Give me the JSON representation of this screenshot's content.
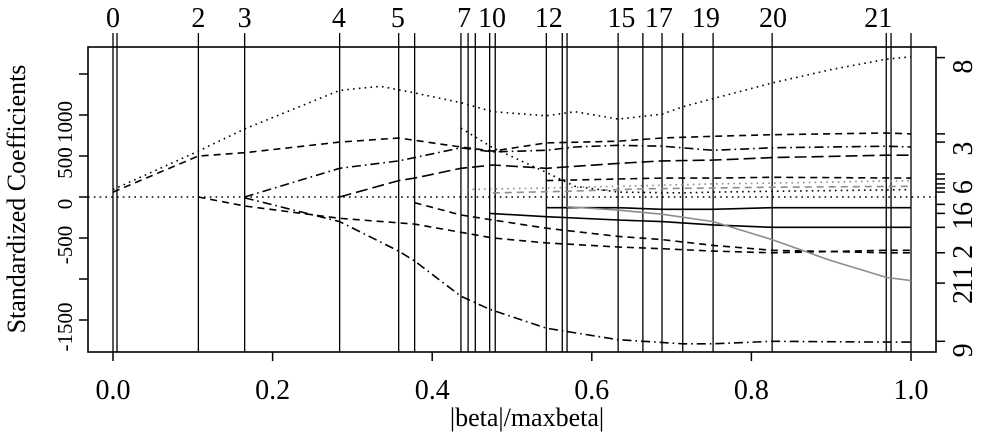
{
  "chart_data": {
    "type": "line",
    "title": "",
    "xlabel": "|beta|/maxbeta|",
    "ylabel": "Standardized Coefficients",
    "x_range": [
      0,
      1
    ],
    "y_range": [
      -1890,
      1830
    ],
    "grid": false,
    "legend_position": "none",
    "x_ticks": [
      {
        "value": 0.0,
        "label": "0.0"
      },
      {
        "value": 0.2,
        "label": "0.2"
      },
      {
        "value": 0.4,
        "label": "0.4"
      },
      {
        "value": 0.6,
        "label": "0.6"
      },
      {
        "value": 0.8,
        "label": "0.8"
      },
      {
        "value": 1.0,
        "label": "1.0"
      }
    ],
    "y_ticks": [
      {
        "value": 1500,
        "label": ""
      },
      {
        "value": 1000,
        "label": "1000"
      },
      {
        "value": 500,
        "label": "500"
      },
      {
        "value": 0,
        "label": "0"
      },
      {
        "value": -500,
        "label": "-500"
      },
      {
        "value": -1000,
        "label": ""
      },
      {
        "value": -1500,
        "label": "-1500"
      }
    ],
    "top_axis_steps": [
      {
        "label": "0",
        "x": 0.0
      },
      {
        "label": "2",
        "x": 0.107
      },
      {
        "label": "3",
        "x": 0.165
      },
      {
        "label": "4",
        "x": 0.283
      },
      {
        "label": "5",
        "x": 0.357
      },
      {
        "label": "7",
        "x": 0.44
      },
      {
        "label": "10",
        "x": 0.475
      },
      {
        "label": "12",
        "x": 0.546
      },
      {
        "label": "15",
        "x": 0.637
      },
      {
        "label": "17",
        "x": 0.684
      },
      {
        "label": "19",
        "x": 0.743
      },
      {
        "label": "20",
        "x": 0.827
      },
      {
        "label": "21",
        "x": 0.959
      }
    ],
    "step_lines_x": [
      0,
      0.005,
      0.107,
      0.165,
      0.284,
      0.358,
      0.378,
      0.436,
      0.445,
      0.454,
      0.472,
      0.479,
      0.543,
      0.563,
      0.569,
      0.633,
      0.664,
      0.688,
      0.714,
      0.752,
      0.826,
      0.969,
      0.975,
      1.0
    ],
    "right_axis_ticks": [
      1700,
      770,
      670,
      280,
      220,
      160,
      110,
      60,
      -90,
      -200,
      -370,
      -680,
      -1050,
      -1760
    ],
    "right_axis_labels": [
      {
        "label": "8",
        "value": 1700
      },
      {
        "label": "3",
        "value": 700
      },
      {
        "label": "6",
        "value": 230
      },
      {
        "label": "16",
        "value": -120
      },
      {
        "label": "2",
        "value": -560
      },
      {
        "label": "11",
        "value": -890
      },
      {
        "label": "2",
        "value": -1110
      },
      {
        "label": "9",
        "value": -1760
      }
    ],
    "zero_reference_line": {
      "y": 0,
      "style": "dotted"
    },
    "series": [
      {
        "name": "path-8-top",
        "lty": "dotted",
        "color": "#000000",
        "x": [
          0,
          0.107,
          0.165,
          0.284,
          0.335,
          0.378,
          0.436,
          0.476,
          0.543,
          0.579,
          0.633,
          0.688,
          0.714,
          0.752,
          0.826,
          0.898,
          0.969,
          1.0
        ],
        "y": [
          90,
          560,
          830,
          1300,
          1350,
          1270,
          1150,
          1040,
          990,
          1040,
          950,
          1010,
          1100,
          1200,
          1390,
          1550,
          1680,
          1710
        ]
      },
      {
        "name": "path-3-upper",
        "lty": "dashed",
        "color": "#000000",
        "x": [
          0,
          0.107,
          0.165,
          0.284,
          0.358,
          0.436,
          0.476,
          0.543,
          0.633,
          0.688,
          0.752,
          0.826,
          0.969,
          1.0
        ],
        "y": [
          60,
          500,
          540,
          670,
          720,
          610,
          560,
          660,
          680,
          720,
          740,
          760,
          780,
          770
        ]
      },
      {
        "name": "path-3-lower",
        "lty": "dashdot",
        "color": "#000000",
        "x": [
          0.165,
          0.284,
          0.358,
          0.397,
          0.436,
          0.476,
          0.543,
          0.579,
          0.633,
          0.688,
          0.752,
          0.826,
          0.969,
          1.0
        ],
        "y": [
          0,
          350,
          440,
          520,
          600,
          550,
          570,
          610,
          630,
          620,
          570,
          600,
          620,
          610
        ]
      },
      {
        "name": "path-mid-rise",
        "lty": "longdash",
        "color": "#000000",
        "x": [
          0.284,
          0.358,
          0.378,
          0.436,
          0.476,
          0.543,
          0.633,
          0.688,
          0.752,
          0.826,
          0.969,
          1.0
        ],
        "y": [
          0,
          200,
          230,
          350,
          390,
          350,
          410,
          440,
          450,
          480,
          510,
          510
        ]
      },
      {
        "name": "path-6-gray-dotted",
        "lty": "dotted",
        "color": "#8c8c8c",
        "x": [
          0.436,
          0.543,
          0.633,
          0.752,
          0.826,
          1.0
        ],
        "y": [
          90,
          110,
          130,
          160,
          170,
          200
        ]
      },
      {
        "name": "path-6-gray-dashed",
        "lty": "dashed",
        "color": "#8c8c8c",
        "x": [
          0.476,
          0.569,
          0.664,
          0.752,
          0.826,
          1.0
        ],
        "y": [
          50,
          70,
          100,
          110,
          120,
          130
        ]
      },
      {
        "name": "path-6-black-dashed",
        "lty": "dashed",
        "color": "#000000",
        "x": [
          0.543,
          0.633,
          0.688,
          0.752,
          0.826,
          1.0
        ],
        "y": [
          200,
          220,
          230,
          230,
          240,
          230
        ]
      },
      {
        "name": "path-16-solid",
        "lty": "solid",
        "color": "#000000",
        "x": [
          0.543,
          0.633,
          0.688,
          0.752,
          0.826,
          1.0
        ],
        "y": [
          -130,
          -130,
          -150,
          -150,
          -130,
          -130
        ]
      },
      {
        "name": "path-2-solid",
        "lty": "solid",
        "color": "#000000",
        "x": [
          0.472,
          0.543,
          0.633,
          0.688,
          0.752,
          0.826,
          1.0
        ],
        "y": [
          -200,
          -240,
          -280,
          -300,
          -340,
          -370,
          -370
        ]
      },
      {
        "name": "path-neg-1",
        "lty": "dashed",
        "color": "#000000",
        "x": [
          0.107,
          0.165,
          0.284,
          0.378,
          0.436,
          0.476,
          0.543,
          0.633,
          0.688,
          0.752,
          0.826,
          0.969,
          1.0
        ],
        "y": [
          0,
          -110,
          -260,
          -330,
          -430,
          -500,
          -560,
          -610,
          -630,
          -660,
          -680,
          -650,
          -650
        ]
      },
      {
        "name": "path-neg-2",
        "lty": "dashed",
        "color": "#000000",
        "x": [
          0.378,
          0.436,
          0.476,
          0.543,
          0.633,
          0.688,
          0.752,
          0.826,
          0.969,
          1.0
        ],
        "y": [
          -70,
          -220,
          -280,
          -380,
          -480,
          -520,
          -590,
          -650,
          -680,
          -680
        ]
      },
      {
        "name": "path-9-deep",
        "lty": "dashdot",
        "color": "#000000",
        "x": [
          0.165,
          0.284,
          0.358,
          0.378,
          0.436,
          0.472,
          0.543,
          0.633,
          0.714,
          0.752,
          0.826,
          0.969,
          1.0
        ],
        "y": [
          -10,
          -300,
          -660,
          -780,
          -1210,
          -1370,
          -1600,
          -1740,
          -1790,
          -1790,
          -1760,
          -1770,
          -1770
        ]
      },
      {
        "name": "path-gray-descender",
        "lty": "solid",
        "color": "#8c8c8c",
        "x": [
          0.569,
          0.633,
          0.688,
          0.752,
          0.826,
          0.898,
          0.969,
          1.0
        ],
        "y": [
          -120,
          -160,
          -210,
          -300,
          -520,
          -770,
          -980,
          -1020
        ]
      },
      {
        "name": "path-converge",
        "lty": "dotted",
        "color": "#000000",
        "x": [
          0.436,
          0.476,
          0.543,
          0.579,
          0.633,
          0.714,
          0.752,
          0.826,
          1.0
        ],
        "y": [
          840,
          600,
          300,
          130,
          60,
          50,
          60,
          70,
          90
        ]
      }
    ]
  }
}
